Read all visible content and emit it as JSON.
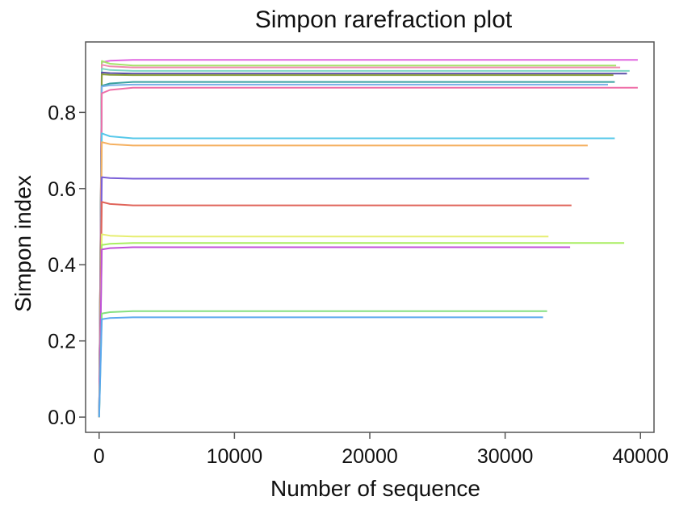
{
  "chart_data": {
    "type": "line",
    "title": "Simpon rarefraction plot",
    "xlabel": "Number of sequence",
    "ylabel": "Simpon index",
    "xlim": [
      -1000,
      41000
    ],
    "ylim": [
      -0.04,
      0.985
    ],
    "xticks": [
      {
        "value": 0,
        "label": "0"
      },
      {
        "value": 10000,
        "label": "10000"
      },
      {
        "value": 20000,
        "label": "20000"
      },
      {
        "value": 30000,
        "label": "30000"
      },
      {
        "value": 40000,
        "label": "40000"
      }
    ],
    "yticks": [
      {
        "value": 0.0,
        "label": "0.0"
      },
      {
        "value": 0.2,
        "label": "0.2"
      },
      {
        "value": 0.4,
        "label": "0.4"
      },
      {
        "value": 0.6,
        "label": "0.6"
      },
      {
        "value": 0.8,
        "label": "0.8"
      }
    ],
    "grid": false,
    "series": [
      {
        "color": "#e066e0",
        "plateau": 0.938,
        "overshoot": 0.932,
        "x_end": 39800
      },
      {
        "color": "#a6e26a",
        "plateau": 0.923,
        "overshoot": 0.935,
        "x_end": 38200
      },
      {
        "color": "#f08cb0",
        "plateau": 0.918,
        "overshoot": 0.925,
        "x_end": 38500
      },
      {
        "color": "#7fd7c4",
        "plateau": 0.909,
        "overshoot": 0.915,
        "x_end": 39200
      },
      {
        "color": "#5b4fa8",
        "plateau": 0.902,
        "overshoot": 0.905,
        "x_end": 39000
      },
      {
        "color": "#8a9e3a",
        "plateau": 0.898,
        "overshoot": 0.9,
        "x_end": 38000
      },
      {
        "color": "#3aa0a0",
        "plateau": 0.88,
        "overshoot": 0.87,
        "x_end": 38100
      },
      {
        "color": "#7ab0e8",
        "plateau": 0.873,
        "overshoot": 0.868,
        "x_end": 37600
      },
      {
        "color": "#ef6fa8",
        "plateau": 0.865,
        "overshoot": 0.85,
        "x_end": 39800
      },
      {
        "color": "#57c8ea",
        "plateau": 0.732,
        "overshoot": 0.745,
        "x_end": 38100
      },
      {
        "color": "#f5b060",
        "plateau": 0.713,
        "overshoot": 0.722,
        "x_end": 36100
      },
      {
        "color": "#7a5fd8",
        "plateau": 0.626,
        "overshoot": 0.63,
        "x_end": 36200
      },
      {
        "color": "#e0645a",
        "plateau": 0.556,
        "overshoot": 0.565,
        "x_end": 34900
      },
      {
        "color": "#e6ee70",
        "plateau": 0.474,
        "overshoot": 0.48,
        "x_end": 33200
      },
      {
        "color": "#a8ee60",
        "plateau": 0.457,
        "overshoot": 0.452,
        "x_end": 38800
      },
      {
        "color": "#c050d8",
        "plateau": 0.446,
        "overshoot": 0.44,
        "x_end": 34800
      },
      {
        "color": "#84e080",
        "plateau": 0.278,
        "overshoot": 0.272,
        "x_end": 33100
      },
      {
        "color": "#5aa8ee",
        "plateau": 0.262,
        "overshoot": 0.257,
        "x_end": 32800
      }
    ]
  }
}
